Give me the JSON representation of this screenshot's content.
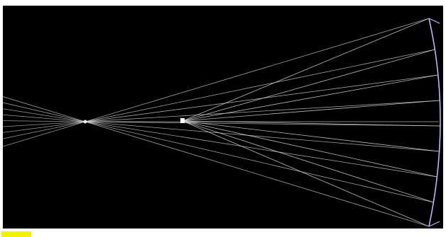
{
  "scene": {
    "background": "#000000",
    "ray_color": "#d8d8d8",
    "mirror_color": "#b6b6ff",
    "source_color": "#ffffff"
  },
  "status": {
    "label": "",
    "color": "#f2f200"
  }
}
